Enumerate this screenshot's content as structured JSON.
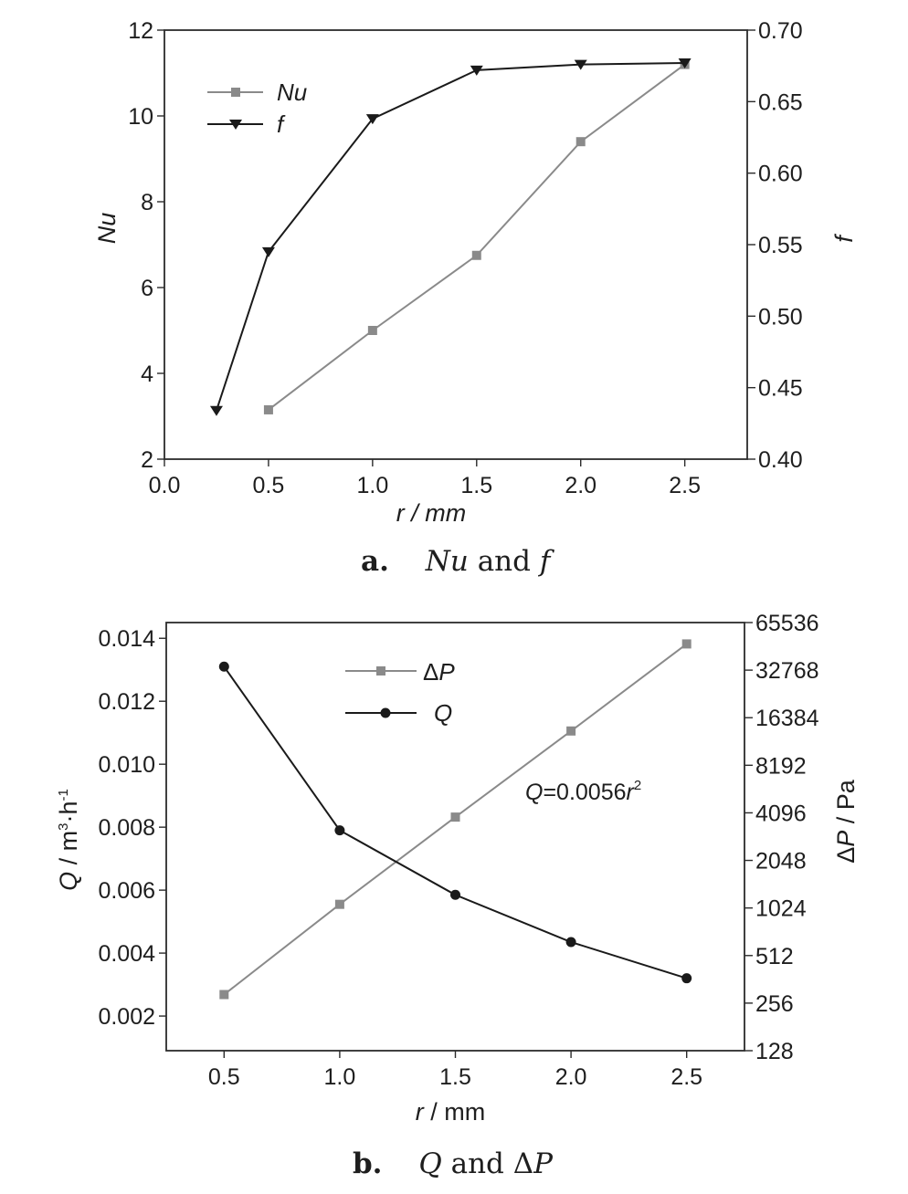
{
  "chart_data": [
    {
      "type": "line",
      "caption": {
        "label": "a.",
        "text": "Nu and f"
      },
      "xlabel": "r / mm",
      "xlim": [
        0.0,
        2.8
      ],
      "xticks": [
        "0.0",
        "0.5",
        "1.0",
        "1.5",
        "2.0",
        "2.5"
      ],
      "y_left": {
        "label": "Nu",
        "lim": [
          2,
          12
        ],
        "ticks": [
          "2",
          "4",
          "6",
          "8",
          "10",
          "12"
        ]
      },
      "y_right": {
        "label": "f",
        "lim": [
          0.4,
          0.7
        ],
        "ticks": [
          "0.40",
          "0.45",
          "0.50",
          "0.55",
          "0.60",
          "0.65",
          "0.70"
        ]
      },
      "legend": {
        "position": "top-left"
      },
      "series": [
        {
          "name": "Nu",
          "axis": "left",
          "marker": "square",
          "color": "#8a8a8a",
          "x": [
            0.5,
            1.0,
            1.5,
            2.0,
            2.5
          ],
          "y": [
            3.15,
            5.0,
            6.75,
            9.4,
            11.2
          ]
        },
        {
          "name": "f",
          "axis": "right",
          "marker": "triangle-down",
          "color": "#1a1a1a",
          "x": [
            0.25,
            0.5,
            1.0,
            1.5,
            2.0,
            2.5
          ],
          "y": [
            0.434,
            0.545,
            0.638,
            0.672,
            0.676,
            0.677
          ]
        }
      ]
    },
    {
      "type": "line",
      "caption": {
        "label": "b.",
        "text": "Q and ΔP"
      },
      "xlabel": "r / mm",
      "xlim": [
        0.25,
        2.75
      ],
      "xticks": [
        "0.5",
        "1.0",
        "1.5",
        "2.0",
        "2.5"
      ],
      "y_left": {
        "label": "Q / m³·h⁻¹",
        "lim": [
          0.0009,
          0.0145
        ],
        "ticks": [
          "0.002",
          "0.004",
          "0.006",
          "0.008",
          "0.010",
          "0.012",
          "0.014"
        ]
      },
      "y_right": {
        "label": "ΔP / Pa",
        "scale": "log2",
        "lim": [
          128,
          65536
        ],
        "ticks": [
          "128",
          "256",
          "512",
          "1024",
          "2048",
          "4096",
          "8192",
          "16384",
          "32768",
          "65536"
        ]
      },
      "annotation": "Q=0.0056r²",
      "legend": {
        "position": "top-center"
      },
      "series": [
        {
          "name": "ΔP",
          "axis": "right",
          "marker": "square",
          "color": "#8a8a8a",
          "x": [
            0.5,
            1.0,
            1.5,
            2.0,
            2.5
          ],
          "y": [
            290,
            1080,
            3850,
            13500,
            48000
          ]
        },
        {
          "name": "Q",
          "axis": "left",
          "marker": "circle",
          "color": "#1a1a1a",
          "x": [
            0.5,
            1.0,
            1.5,
            2.0,
            2.5
          ],
          "y": [
            0.0131,
            0.0079,
            0.00585,
            0.00435,
            0.0032
          ]
        }
      ]
    }
  ]
}
